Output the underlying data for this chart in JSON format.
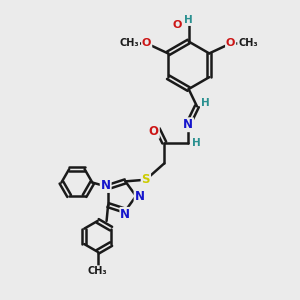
{
  "bg_color": "#ebebeb",
  "bond_color": "#1a1a1a",
  "bond_width": 1.8,
  "dbo": 0.07,
  "atom_colors": {
    "C": "#1a1a1a",
    "H": "#2a9090",
    "N": "#1515cc",
    "O": "#cc1515",
    "S": "#cccc00"
  },
  "fs": 8.5,
  "figsize": [
    3.0,
    3.0
  ],
  "dpi": 100,
  "xlim": [
    0,
    10
  ],
  "ylim": [
    0,
    10
  ]
}
